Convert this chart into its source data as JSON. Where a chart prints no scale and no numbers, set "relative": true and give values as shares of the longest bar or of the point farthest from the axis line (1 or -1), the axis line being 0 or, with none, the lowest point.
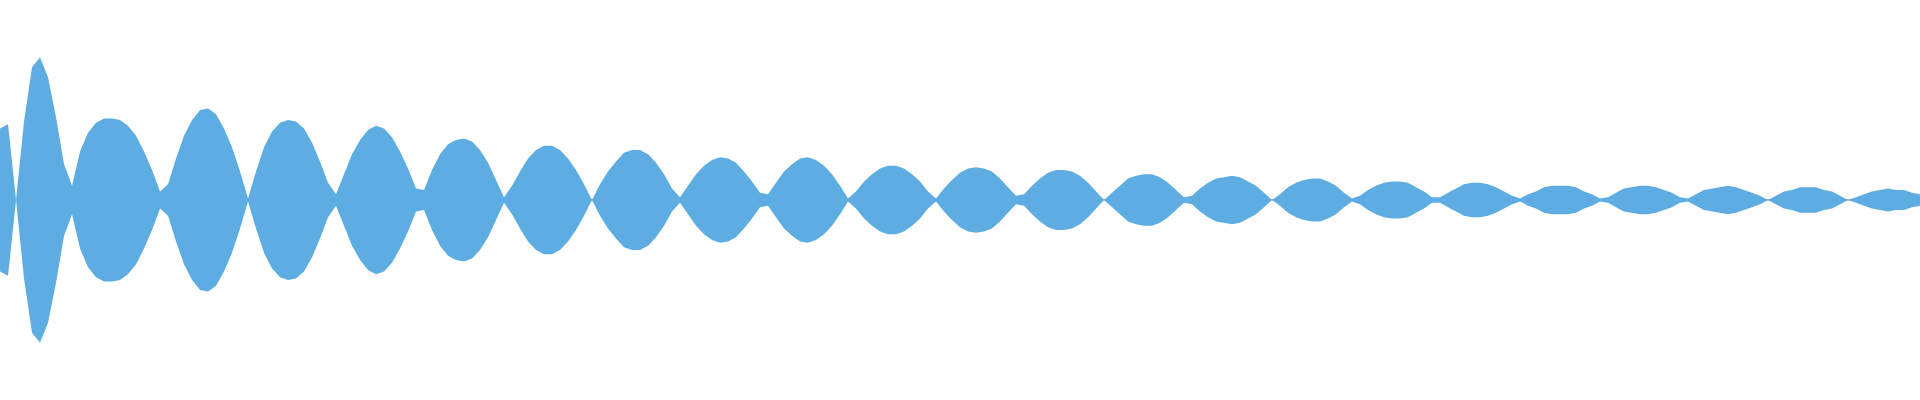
{
  "chart_data": {
    "type": "area",
    "relative": true,
    "categories": [
      null,
      null,
      null,
      null,
      null,
      null,
      null,
      null,
      null,
      null,
      null,
      null,
      null,
      null,
      null,
      null,
      null,
      null,
      null,
      null,
      null,
      null,
      null,
      null,
      null,
      null,
      null,
      null,
      null,
      null,
      null,
      null,
      null,
      null,
      null,
      null,
      null,
      null,
      null,
      null,
      null,
      null,
      null,
      null,
      null,
      null,
      null,
      null,
      null,
      null,
      null,
      null,
      null,
      null,
      null,
      null,
      null,
      null,
      null,
      null,
      null,
      null,
      null,
      null,
      null,
      null,
      null,
      null,
      null,
      null,
      null,
      null,
      null,
      null,
      null,
      null,
      null,
      null,
      null,
      null,
      null,
      null,
      null,
      null,
      null,
      null,
      null,
      null,
      null,
      null,
      null,
      null,
      null,
      null,
      null,
      null,
      null,
      null,
      null,
      null,
      null,
      null,
      null,
      null,
      null,
      null,
      null,
      null,
      null,
      null,
      null,
      null,
      null,
      null,
      null,
      null,
      null,
      null,
      null,
      null,
      null,
      null,
      null,
      null,
      null,
      null,
      null,
      null,
      null,
      null,
      null,
      null,
      null,
      null,
      null,
      null,
      null,
      null,
      null,
      null,
      null,
      null,
      null,
      null,
      null,
      null,
      null,
      null,
      null,
      null,
      null,
      null,
      null,
      null,
      null,
      null,
      null,
      null,
      null,
      null,
      null,
      null,
      null,
      null,
      null,
      null,
      null,
      null,
      null,
      null,
      null,
      null,
      null,
      null,
      null,
      null,
      null,
      null,
      null,
      null,
      null,
      null,
      null,
      null,
      null,
      null,
      null,
      null,
      null,
      null,
      null,
      null,
      null,
      null,
      null,
      null,
      null,
      null,
      null,
      null,
      null,
      null,
      null,
      null,
      null,
      null,
      null,
      null,
      null,
      null,
      null,
      null,
      null,
      null,
      null,
      null,
      null,
      null,
      null,
      null,
      null,
      null,
      null,
      null,
      null,
      null,
      null,
      null,
      null,
      null,
      null,
      null,
      null,
      null,
      null,
      null,
      null,
      null,
      null,
      null,
      null
    ],
    "series": [
      {
        "color": "#5dade2",
        "values": [
          0.5,
          0.53,
          0.0,
          0.55,
          0.93,
          1.0,
          0.86,
          0.58,
          0.25,
          0.1,
          0.34,
          0.47,
          0.54,
          0.57,
          0.57,
          0.56,
          0.52,
          0.45,
          0.34,
          0.21,
          0.06,
          0.11,
          0.29,
          0.45,
          0.56,
          0.63,
          0.64,
          0.6,
          0.5,
          0.37,
          0.2,
          0.01,
          0.2,
          0.37,
          0.48,
          0.54,
          0.56,
          0.55,
          0.5,
          0.4,
          0.27,
          0.12,
          0.04,
          0.18,
          0.32,
          0.42,
          0.49,
          0.52,
          0.5,
          0.44,
          0.34,
          0.22,
          0.08,
          0.07,
          0.21,
          0.32,
          0.39,
          0.42,
          0.43,
          0.41,
          0.35,
          0.26,
          0.14,
          0.02,
          0.1,
          0.2,
          0.29,
          0.35,
          0.38,
          0.38,
          0.35,
          0.29,
          0.21,
          0.11,
          0.0,
          0.11,
          0.2,
          0.27,
          0.33,
          0.35,
          0.35,
          0.32,
          0.26,
          0.18,
          0.08,
          0.02,
          0.1,
          0.18,
          0.24,
          0.28,
          0.3,
          0.29,
          0.26,
          0.2,
          0.13,
          0.05,
          0.04,
          0.12,
          0.2,
          0.25,
          0.29,
          0.3,
          0.28,
          0.24,
          0.18,
          0.1,
          0.01,
          0.06,
          0.13,
          0.18,
          0.22,
          0.24,
          0.24,
          0.22,
          0.18,
          0.13,
          0.06,
          0.01,
          0.08,
          0.14,
          0.19,
          0.22,
          0.23,
          0.22,
          0.2,
          0.15,
          0.09,
          0.03,
          0.04,
          0.1,
          0.15,
          0.19,
          0.21,
          0.21,
          0.2,
          0.17,
          0.12,
          0.06,
          0.0,
          0.05,
          0.1,
          0.15,
          0.17,
          0.18,
          0.18,
          0.16,
          0.12,
          0.07,
          0.02,
          0.03,
          0.08,
          0.12,
          0.15,
          0.16,
          0.17,
          0.16,
          0.13,
          0.1,
          0.05,
          0.0,
          0.04,
          0.09,
          0.12,
          0.14,
          0.15,
          0.15,
          0.13,
          0.1,
          0.05,
          0.01,
          0.03,
          0.07,
          0.1,
          0.12,
          0.13,
          0.13,
          0.12,
          0.09,
          0.06,
          0.02,
          0.02,
          0.05,
          0.08,
          0.11,
          0.12,
          0.12,
          0.11,
          0.09,
          0.06,
          0.03,
          0.01,
          0.04,
          0.06,
          0.09,
          0.1,
          0.1,
          0.1,
          0.09,
          0.06,
          0.04,
          0.01,
          0.02,
          0.05,
          0.08,
          0.09,
          0.1,
          0.1,
          0.09,
          0.07,
          0.05,
          0.02,
          0.01,
          0.04,
          0.07,
          0.08,
          0.09,
          0.1,
          0.09,
          0.07,
          0.05,
          0.03,
          0.0,
          0.03,
          0.06,
          0.07,
          0.09,
          0.09,
          0.09,
          0.07,
          0.06,
          0.03,
          0.0,
          0.02,
          0.04,
          0.06,
          0.07,
          0.08,
          0.07,
          0.07,
          0.05,
          0.04
        ]
      },
      {
        "color": "#5dade2",
        "values": [
          -0.5,
          -0.53,
          0.0,
          -0.55,
          -0.93,
          -1.0,
          -0.86,
          -0.58,
          -0.25,
          -0.1,
          -0.34,
          -0.47,
          -0.54,
          -0.57,
          -0.57,
          -0.56,
          -0.52,
          -0.45,
          -0.34,
          -0.21,
          -0.06,
          -0.11,
          -0.29,
          -0.45,
          -0.56,
          -0.63,
          -0.64,
          -0.6,
          -0.5,
          -0.37,
          -0.2,
          -0.01,
          -0.2,
          -0.37,
          -0.48,
          -0.54,
          -0.56,
          -0.55,
          -0.5,
          -0.4,
          -0.27,
          -0.12,
          -0.04,
          -0.18,
          -0.32,
          -0.42,
          -0.49,
          -0.52,
          -0.5,
          -0.44,
          -0.34,
          -0.22,
          -0.08,
          -0.07,
          -0.21,
          -0.32,
          -0.39,
          -0.42,
          -0.43,
          -0.41,
          -0.35,
          -0.26,
          -0.14,
          -0.02,
          -0.1,
          -0.2,
          -0.29,
          -0.35,
          -0.38,
          -0.38,
          -0.35,
          -0.29,
          -0.21,
          -0.11,
          0.0,
          -0.11,
          -0.2,
          -0.27,
          -0.33,
          -0.35,
          -0.35,
          -0.32,
          -0.26,
          -0.18,
          -0.08,
          -0.02,
          -0.1,
          -0.18,
          -0.24,
          -0.28,
          -0.3,
          -0.29,
          -0.26,
          -0.2,
          -0.13,
          -0.05,
          -0.04,
          -0.12,
          -0.2,
          -0.25,
          -0.29,
          -0.3,
          -0.28,
          -0.24,
          -0.18,
          -0.1,
          -0.01,
          -0.06,
          -0.13,
          -0.18,
          -0.22,
          -0.24,
          -0.24,
          -0.22,
          -0.18,
          -0.13,
          -0.06,
          -0.01,
          -0.08,
          -0.14,
          -0.19,
          -0.22,
          -0.23,
          -0.22,
          -0.2,
          -0.15,
          -0.09,
          -0.03,
          -0.04,
          -0.1,
          -0.15,
          -0.19,
          -0.21,
          -0.21,
          -0.2,
          -0.17,
          -0.12,
          -0.06,
          0.0,
          -0.05,
          -0.1,
          -0.15,
          -0.17,
          -0.18,
          -0.18,
          -0.16,
          -0.12,
          -0.07,
          -0.02,
          -0.03,
          -0.08,
          -0.12,
          -0.15,
          -0.16,
          -0.17,
          -0.16,
          -0.13,
          -0.1,
          -0.05,
          0.0,
          -0.04,
          -0.09,
          -0.12,
          -0.14,
          -0.15,
          -0.15,
          -0.13,
          -0.1,
          -0.05,
          -0.01,
          -0.03,
          -0.07,
          -0.1,
          -0.12,
          -0.13,
          -0.13,
          -0.12,
          -0.09,
          -0.06,
          -0.02,
          -0.02,
          -0.05,
          -0.08,
          -0.11,
          -0.12,
          -0.12,
          -0.11,
          -0.09,
          -0.06,
          -0.03,
          -0.01,
          -0.04,
          -0.06,
          -0.09,
          -0.1,
          -0.1,
          -0.1,
          -0.09,
          -0.06,
          -0.04,
          -0.01,
          -0.02,
          -0.05,
          -0.08,
          -0.09,
          -0.1,
          -0.1,
          -0.09,
          -0.07,
          -0.05,
          -0.02,
          -0.01,
          -0.04,
          -0.07,
          -0.08,
          -0.09,
          -0.1,
          -0.09,
          -0.07,
          -0.05,
          -0.03,
          0.0,
          -0.03,
          -0.06,
          -0.07,
          -0.09,
          -0.09,
          -0.09,
          -0.07,
          -0.06,
          -0.03,
          0.0,
          -0.02,
          -0.04,
          -0.06,
          -0.07,
          -0.08,
          -0.07,
          -0.07,
          -0.05,
          -0.04
        ]
      }
    ]
  }
}
